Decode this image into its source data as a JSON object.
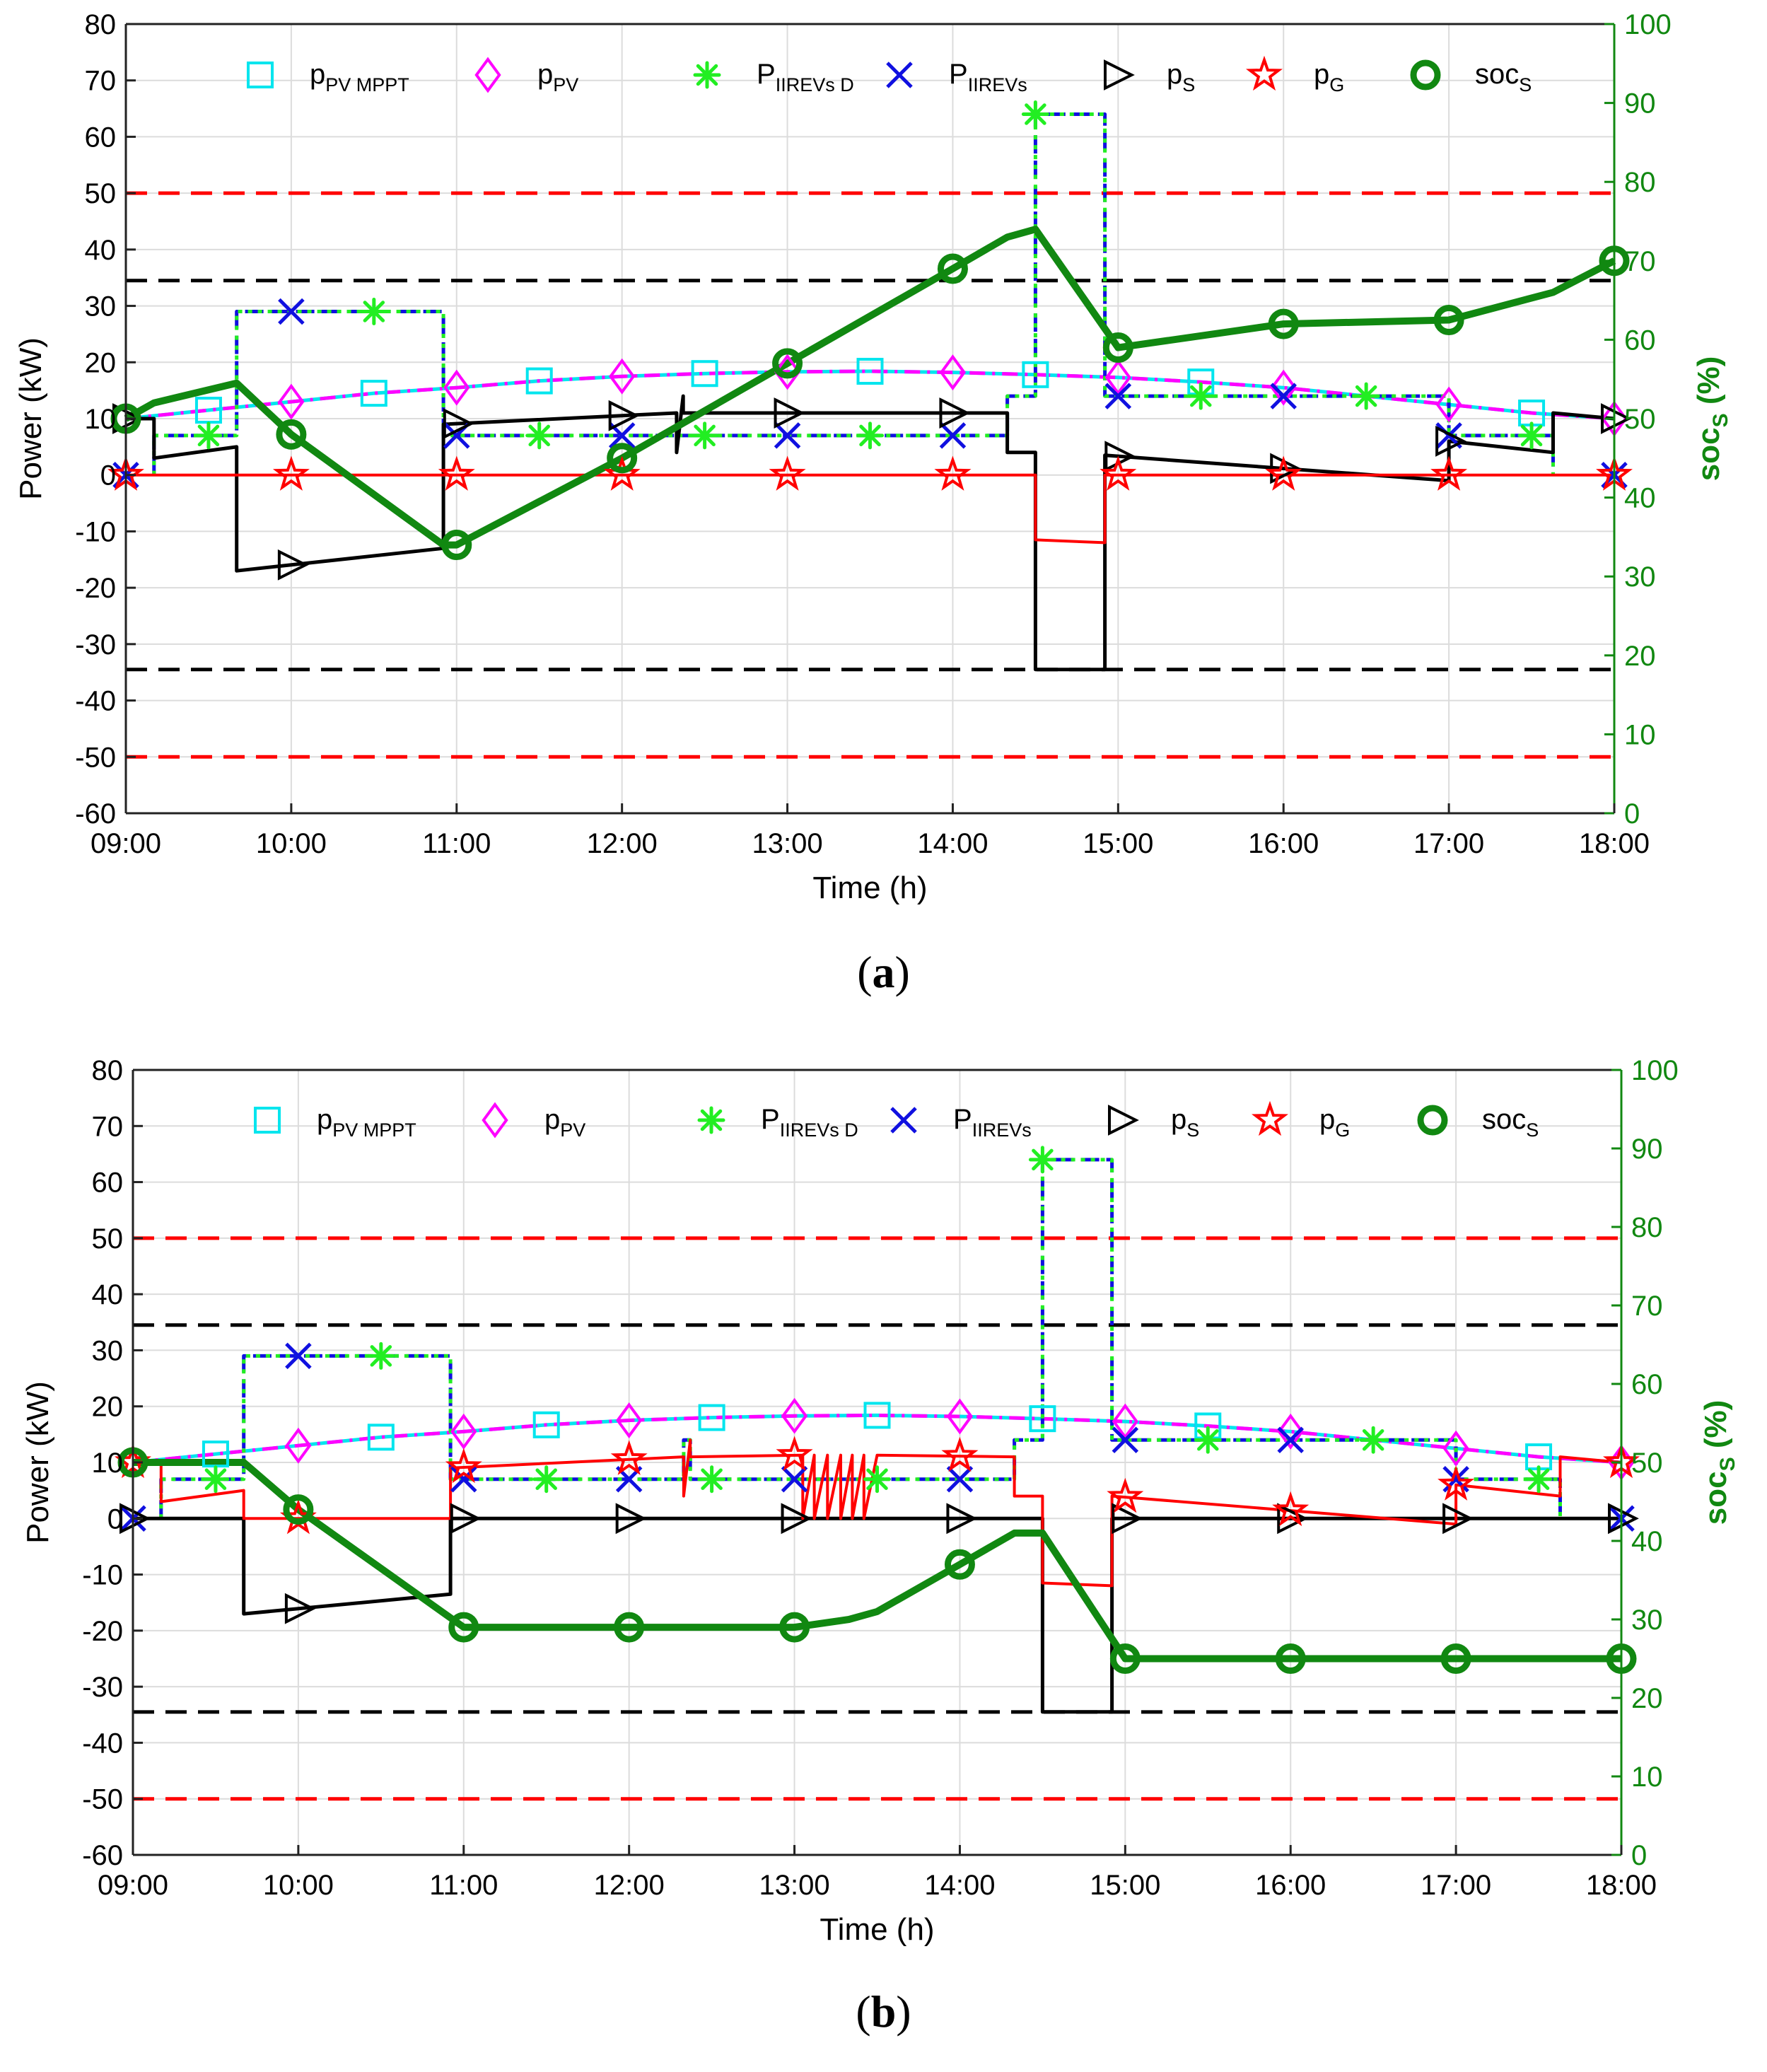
{
  "chart_data": [
    {
      "type": "line",
      "panel_label": "a",
      "xlabel": "Time (h)",
      "ylabel_left": "Power (kW)",
      "ylabel_right_main": "soc",
      "ylabel_right_sub": "S",
      "ylabel_right_suffix": " (%)",
      "x_ticks": [
        "09:00",
        "10:00",
        "11:00",
        "12:00",
        "13:00",
        "14:00",
        "15:00",
        "16:00",
        "17:00",
        "18:00"
      ],
      "y_ticks_left": [
        "80",
        "70",
        "60",
        "50",
        "40",
        "30",
        "20",
        "10",
        "0",
        "-10",
        "-20",
        "-30",
        "-40",
        "-50",
        "-60"
      ],
      "y_ticks_right": [
        "100",
        "90",
        "80",
        "70",
        "60",
        "50",
        "40",
        "30",
        "20",
        "10",
        "0"
      ],
      "ylim_left": [
        -60,
        80
      ],
      "ylim_right": [
        0,
        100
      ],
      "xlim_hours": [
        9,
        18
      ],
      "grid": true,
      "legend": [
        {
          "main": "p",
          "sub": "PV MPPT",
          "marker": "square",
          "color": "#00e5ee"
        },
        {
          "main": "p",
          "sub": "PV",
          "marker": "diamond",
          "color": "#ff00ff"
        },
        {
          "main": "P",
          "sub": "IIREVs D",
          "marker": "asterisk",
          "color": "#22ee22"
        },
        {
          "main": "P",
          "sub": "IIREVs",
          "marker": "x",
          "color": "#1010e0"
        },
        {
          "main": "p",
          "sub": "S",
          "marker": "triangle-right",
          "color": "#000000"
        },
        {
          "main": "p",
          "sub": "G",
          "marker": "star",
          "color": "#ff0000"
        },
        {
          "main": "soc",
          "sub": "S",
          "marker": "circle",
          "color": "#118811"
        }
      ],
      "reference_lines": [
        {
          "y": 50,
          "color": "#ff0000"
        },
        {
          "y": -50,
          "color": "#ff0000"
        },
        {
          "y": 34.5,
          "color": "#000000"
        },
        {
          "y": -34.5,
          "color": "#000000"
        }
      ],
      "series": [
        {
          "name": "p_PV_MPPT",
          "x": [
            9,
            9.5,
            10,
            10.5,
            11,
            11.5,
            12,
            12.5,
            13,
            13.5,
            14,
            14.5,
            15,
            15.5,
            16,
            16.5,
            17,
            17.5,
            18
          ],
          "y": [
            10,
            11.5,
            13,
            14.5,
            15.5,
            16.7,
            17.5,
            18,
            18.3,
            18.4,
            18.2,
            17.8,
            17.3,
            16.5,
            15.5,
            14,
            12.5,
            11,
            10
          ]
        },
        {
          "name": "p_PV",
          "x": [
            9,
            9.5,
            10,
            10.5,
            11,
            11.5,
            12,
            12.5,
            13,
            13.5,
            14,
            14.5,
            15,
            15.5,
            16,
            16.5,
            17,
            17.5,
            18
          ],
          "y": [
            10,
            11.5,
            13,
            14.5,
            15.5,
            16.7,
            17.5,
            18,
            18.3,
            18.4,
            18.2,
            17.8,
            17.3,
            16.5,
            15.5,
            14,
            12.5,
            11,
            10
          ]
        },
        {
          "name": "P_IIREVs_D",
          "x": [
            9.17,
            9.17,
            9.67,
            9.67,
            10.92,
            10.92,
            14.33,
            14.33,
            14.5,
            14.5,
            14.92,
            14.92,
            17.0,
            17.0,
            17.63,
            17.63
          ],
          "y": [
            0,
            7,
            7,
            29,
            29,
            7,
            7,
            14,
            14,
            64,
            64,
            14,
            14,
            7,
            7,
            0
          ]
        },
        {
          "name": "P_IIREVs",
          "x": [
            9.17,
            9.17,
            9.67,
            9.67,
            10.92,
            10.92,
            14.33,
            14.33,
            14.5,
            14.5,
            14.92,
            14.92,
            17.0,
            17.0,
            17.63,
            17.63
          ],
          "y": [
            0,
            7,
            7,
            29,
            29,
            7,
            7,
            14,
            14,
            64,
            64,
            14,
            14,
            7,
            7,
            0
          ]
        },
        {
          "name": "p_S",
          "x": [
            9,
            9.17,
            9.17,
            9.67,
            9.67,
            10.92,
            10.92,
            12.33,
            12.33,
            12.37,
            12.37,
            14.33,
            14.33,
            14.5,
            14.5,
            14.92,
            14.92,
            17.0,
            17.0,
            17.63,
            17.63,
            18
          ],
          "y": [
            10,
            10,
            3,
            5,
            -17,
            -13,
            9,
            11,
            4,
            14,
            11,
            11,
            4,
            4,
            -34.5,
            -34.5,
            3.5,
            -1,
            6,
            4,
            11,
            10
          ]
        },
        {
          "name": "p_G",
          "x": [
            9,
            14.5,
            14.5,
            14.92,
            14.92,
            18
          ],
          "y": [
            0,
            0,
            -11.5,
            -12,
            0,
            0
          ]
        },
        {
          "name": "soc_S",
          "x": [
            9,
            9.17,
            9.67,
            10,
            10.92,
            11,
            12,
            13,
            14,
            14.33,
            14.5,
            15,
            16,
            17,
            17.63,
            18
          ],
          "y": [
            50,
            52,
            54.5,
            48,
            34,
            34,
            45,
            57,
            69,
            73,
            74,
            59,
            62,
            62.5,
            66,
            70
          ]
        }
      ]
    },
    {
      "type": "line",
      "panel_label": "b",
      "xlabel": "Time (h)",
      "ylabel_left": "Power (kW)",
      "ylabel_right_main": "soc",
      "ylabel_right_sub": "S",
      "ylabel_right_suffix": " (%)",
      "x_ticks": [
        "09:00",
        "10:00",
        "11:00",
        "12:00",
        "13:00",
        "14:00",
        "15:00",
        "16:00",
        "17:00",
        "18:00"
      ],
      "y_ticks_left": [
        "80",
        "70",
        "60",
        "50",
        "40",
        "30",
        "20",
        "10",
        "0",
        "-10",
        "-20",
        "-30",
        "-40",
        "-50",
        "-60"
      ],
      "y_ticks_right": [
        "100",
        "90",
        "80",
        "70",
        "60",
        "50",
        "40",
        "30",
        "20",
        "10",
        "0"
      ],
      "ylim_left": [
        -60,
        80
      ],
      "ylim_right": [
        0,
        100
      ],
      "xlim_hours": [
        9,
        18
      ],
      "grid": true,
      "legend": [
        {
          "main": "p",
          "sub": "PV MPPT",
          "marker": "square",
          "color": "#00e5ee"
        },
        {
          "main": "p",
          "sub": "PV",
          "marker": "diamond",
          "color": "#ff00ff"
        },
        {
          "main": "P",
          "sub": "IIREVs D",
          "marker": "asterisk",
          "color": "#22ee22"
        },
        {
          "main": "P",
          "sub": "IIREVs",
          "marker": "x",
          "color": "#1010e0"
        },
        {
          "main": "p",
          "sub": "S",
          "marker": "triangle-right",
          "color": "#000000"
        },
        {
          "main": "p",
          "sub": "G",
          "marker": "star",
          "color": "#ff0000"
        },
        {
          "main": "soc",
          "sub": "S",
          "marker": "circle",
          "color": "#118811"
        }
      ],
      "reference_lines": [
        {
          "y": 50,
          "color": "#ff0000"
        },
        {
          "y": -50,
          "color": "#ff0000"
        },
        {
          "y": 34.5,
          "color": "#000000"
        },
        {
          "y": -34.5,
          "color": "#000000"
        }
      ],
      "series": [
        {
          "name": "p_PV_MPPT",
          "x": [
            9,
            9.5,
            10,
            10.5,
            11,
            11.5,
            12,
            12.5,
            13,
            13.5,
            14,
            14.5,
            15,
            15.5,
            16,
            16.5,
            17,
            17.5,
            18
          ],
          "y": [
            10,
            11.5,
            13,
            14.5,
            15.5,
            16.7,
            17.5,
            18,
            18.3,
            18.4,
            18.2,
            17.8,
            17.3,
            16.5,
            15.5,
            14,
            12.5,
            11,
            10
          ]
        },
        {
          "name": "p_PV",
          "x": [
            9,
            9.5,
            10,
            10.5,
            11,
            11.5,
            12,
            12.5,
            13,
            13.5,
            14,
            14.5,
            15,
            15.5,
            16,
            16.5,
            17,
            17.5,
            18
          ],
          "y": [
            10,
            11.5,
            13,
            14.5,
            15.5,
            16.7,
            17.5,
            18,
            18.3,
            18.4,
            18.2,
            17.8,
            17.3,
            16.5,
            15.5,
            14,
            12.5,
            11,
            10
          ]
        },
        {
          "name": "P_IIREVs_D",
          "x": [
            9.17,
            9.17,
            9.67,
            9.67,
            10.92,
            10.92,
            12.33,
            12.33,
            12.37,
            12.37,
            14.33,
            14.33,
            14.5,
            14.5,
            14.92,
            14.92,
            17.0,
            17.0,
            17.63,
            17.63
          ],
          "y": [
            0,
            7,
            7,
            29,
            29,
            7,
            7,
            14,
            14,
            7,
            7,
            14,
            14,
            64,
            64,
            14,
            14,
            7,
            7,
            0
          ]
        },
        {
          "name": "P_IIREVs",
          "x": [
            9.17,
            9.17,
            9.67,
            9.67,
            10.92,
            10.92,
            12.33,
            12.33,
            12.37,
            12.37,
            14.33,
            14.33,
            14.5,
            14.5,
            14.92,
            14.92,
            17.0,
            17.0,
            17.63,
            17.63
          ],
          "y": [
            0,
            7,
            7,
            29,
            29,
            7,
            7,
            14,
            14,
            7,
            7,
            14,
            14,
            64,
            64,
            14,
            14,
            7,
            7,
            0
          ]
        },
        {
          "name": "p_S",
          "x": [
            9,
            9.67,
            9.67,
            10.92,
            10.92,
            14.5,
            14.5,
            14.92,
            14.92,
            18
          ],
          "y": [
            0,
            0,
            -17,
            -13.5,
            0,
            0,
            -34.5,
            -34.5,
            0,
            0
          ]
        },
        {
          "name": "p_G",
          "x": [
            9,
            9.17,
            9.17,
            9.67,
            9.67,
            10.92,
            10.92,
            12.33,
            12.33,
            12.37,
            12.37,
            13.05,
            13.05,
            13.12,
            13.12,
            13.2,
            13.2,
            13.28,
            13.28,
            13.35,
            13.35,
            13.42,
            13.42,
            13.5,
            13.5,
            14.33,
            14.33,
            14.5,
            14.5,
            14.92,
            14.92,
            17.0,
            17.0,
            17.63,
            17.63,
            18
          ],
          "y": [
            10,
            10,
            3,
            5,
            0,
            0,
            9,
            11,
            4,
            14,
            11,
            11.3,
            0,
            11.3,
            0,
            11.3,
            0,
            11.3,
            0,
            11.3,
            0,
            11.3,
            0,
            11.3,
            11.3,
            11,
            4,
            4,
            -11.5,
            -12,
            4,
            -1,
            6,
            4,
            11,
            10
          ]
        },
        {
          "name": "soc_S",
          "x": [
            9,
            9.67,
            10,
            11,
            12,
            13,
            13.33,
            13.5,
            14,
            14.33,
            14.5,
            15,
            16,
            17,
            18
          ],
          "y": [
            50,
            50,
            44,
            29,
            29,
            29,
            30,
            31,
            37,
            41,
            41,
            25,
            25,
            25,
            25
          ]
        }
      ]
    }
  ]
}
